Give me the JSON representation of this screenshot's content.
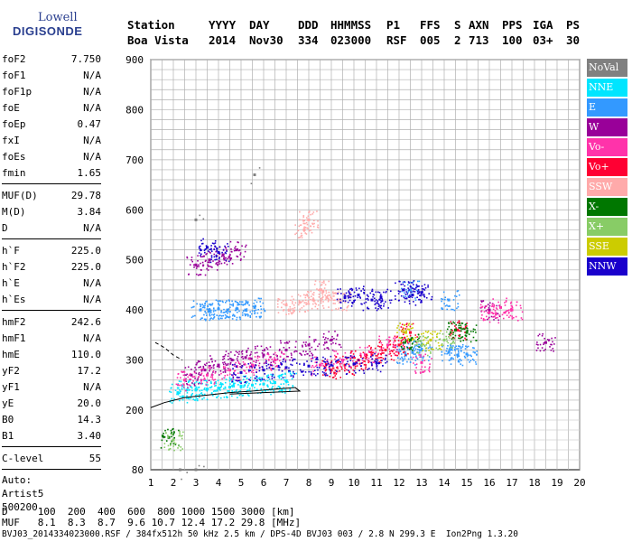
{
  "logo": {
    "line1": "Lowell",
    "line2": "DIGISONDE"
  },
  "header": {
    "labels": [
      "Station",
      "YYYY",
      "DAY",
      "DDD",
      "HHMMSS",
      "P1",
      "FFS",
      "S",
      "AXN",
      "PPS",
      "IGA",
      "PS"
    ],
    "values": [
      "Boa Vista",
      "2014",
      "Nov30",
      "334",
      "023000",
      "RSF",
      "005",
      "2",
      "713",
      "100",
      "03+",
      "30"
    ]
  },
  "params": {
    "group1": [
      {
        "k": "foF2",
        "v": "7.750"
      },
      {
        "k": "foF1",
        "v": "N/A"
      },
      {
        "k": "foF1p",
        "v": "N/A"
      },
      {
        "k": "foE",
        "v": "N/A"
      },
      {
        "k": "foEp",
        "v": "0.47"
      },
      {
        "k": "fxI",
        "v": "N/A"
      },
      {
        "k": "foEs",
        "v": "N/A"
      },
      {
        "k": "fmin",
        "v": "1.65"
      }
    ],
    "group2": [
      {
        "k": "MUF(D)",
        "v": "29.78"
      },
      {
        "k": "M(D)",
        "v": "3.84"
      },
      {
        "k": "D",
        "v": "N/A"
      }
    ],
    "group3": [
      {
        "k": "h`F",
        "v": "225.0"
      },
      {
        "k": "h`F2",
        "v": "225.0"
      },
      {
        "k": "h`E",
        "v": "N/A"
      },
      {
        "k": "h`Es",
        "v": "N/A"
      }
    ],
    "group4": [
      {
        "k": "hmF2",
        "v": "242.6"
      },
      {
        "k": "hmF1",
        "v": "N/A"
      },
      {
        "k": "hmE",
        "v": "110.0"
      },
      {
        "k": "yF2",
        "v": "17.2"
      },
      {
        "k": "yF1",
        "v": "N/A"
      },
      {
        "k": "yE",
        "v": "20.0"
      },
      {
        "k": "B0",
        "v": "14.3"
      },
      {
        "k": "B1",
        "v": "3.40"
      }
    ],
    "group5": [
      {
        "k": "C-level",
        "v": "55"
      }
    ],
    "auto": [
      "Auto:",
      "Artist5",
      "500200"
    ]
  },
  "legend": [
    {
      "label": "NoVal",
      "color": "#808080"
    },
    {
      "label": "NNE",
      "color": "#00e5ff"
    },
    {
      "label": "E",
      "color": "#3399ff"
    },
    {
      "label": "W",
      "color": "#990099"
    },
    {
      "label": "Vo-",
      "color": "#ff33aa"
    },
    {
      "label": "Vo+",
      "color": "#ff0033"
    },
    {
      "label": "SSW",
      "color": "#ffaaaa"
    },
    {
      "label": "X-",
      "color": "#007700"
    },
    {
      "label": "X+",
      "color": "#88cc66"
    },
    {
      "label": "SSE",
      "color": "#cccc00"
    },
    {
      "label": "NNW",
      "color": "#1a00cc"
    }
  ],
  "footer": {
    "line1": "D     100  200  400  600  800 1000 1500 3000 [km]",
    "line2": "MUF   8.1  8.3  8.7  9.6 10.7 12.4 17.2 29.8 [MHz]",
    "line3": "BVJ03_2014334023000.RSF / 384fx512h 50 kHz 2.5 km / DPS-4D BVJ03 003 / 2.8 N 299.3 E  Ion2Png 1.3.20"
  },
  "chart_data": {
    "type": "scatter",
    "title": "",
    "xlabel": "",
    "ylabel": "",
    "xlim": [
      1,
      20
    ],
    "ylim": [
      80,
      900
    ],
    "x_ticks": [
      1,
      2,
      3,
      4,
      5,
      6,
      7,
      8,
      9,
      10,
      11,
      12,
      13,
      14,
      15,
      16,
      17,
      18,
      19,
      20
    ],
    "y_ticks": [
      80,
      200,
      300,
      400,
      500,
      600,
      700,
      800,
      900
    ],
    "grid": true,
    "series": [
      {
        "name": "NNE",
        "color": "#00e5ff",
        "points": [
          [
            2.2,
            235
          ],
          [
            2.6,
            240
          ],
          [
            3.0,
            240
          ],
          [
            3.5,
            242
          ],
          [
            4.0,
            244
          ],
          [
            4.5,
            246
          ],
          [
            5.0,
            248
          ],
          [
            5.5,
            250
          ],
          [
            6.0,
            252
          ],
          [
            6.5,
            255
          ],
          [
            7.0,
            258
          ]
        ]
      },
      {
        "name": "E",
        "color": "#3399ff",
        "points": [
          [
            3.2,
            400
          ],
          [
            3.6,
            400
          ],
          [
            4.0,
            402
          ],
          [
            4.4,
            400
          ],
          [
            4.8,
            402
          ],
          [
            5.2,
            400
          ],
          [
            5.6,
            405
          ],
          [
            12.3,
            310
          ],
          [
            12.6,
            315
          ],
          [
            13.0,
            320
          ],
          [
            14.2,
            315
          ],
          [
            14.6,
            310
          ],
          [
            15.0,
            312
          ],
          [
            12.5,
            440
          ],
          [
            14.2,
            420
          ]
        ]
      },
      {
        "name": "W",
        "color": "#990099",
        "points": [
          [
            2.8,
            270
          ],
          [
            3.4,
            280
          ],
          [
            4.0,
            290
          ],
          [
            4.6,
            300
          ],
          [
            5.2,
            305
          ],
          [
            6.0,
            310
          ],
          [
            7.0,
            320
          ],
          [
            8.0,
            330
          ],
          [
            9.0,
            340
          ],
          [
            3.0,
            490
          ],
          [
            3.6,
            500
          ],
          [
            4.2,
            510
          ],
          [
            4.8,
            520
          ],
          [
            16.0,
            400
          ],
          [
            18.5,
            335
          ]
        ]
      },
      {
        "name": "Vo-",
        "color": "#ff33aa",
        "points": [
          [
            2.5,
            260
          ],
          [
            3.5,
            270
          ],
          [
            4.5,
            280
          ],
          [
            5.5,
            290
          ],
          [
            6.5,
            300
          ],
          [
            8.5,
            290
          ],
          [
            9.5,
            300
          ],
          [
            10.5,
            310
          ],
          [
            11.5,
            330
          ],
          [
            16.0,
            395
          ],
          [
            16.5,
            405
          ],
          [
            17.0,
            400
          ],
          [
            13.0,
            295
          ]
        ]
      },
      {
        "name": "Vo+",
        "color": "#ff0033",
        "points": [
          [
            9.0,
            280
          ],
          [
            9.6,
            290
          ],
          [
            10.2,
            300
          ],
          [
            10.8,
            310
          ],
          [
            11.4,
            320
          ],
          [
            12.0,
            330
          ],
          [
            14.6,
            360
          ],
          [
            12.5,
            355
          ]
        ]
      },
      {
        "name": "SSW",
        "color": "#ffaaaa",
        "points": [
          [
            7.0,
            410
          ],
          [
            7.6,
            415
          ],
          [
            8.2,
            420
          ],
          [
            8.8,
            425
          ],
          [
            9.4,
            420
          ],
          [
            8.5,
            440
          ],
          [
            7.8,
            560
          ],
          [
            8.0,
            580
          ]
        ]
      },
      {
        "name": "X-",
        "color": "#007700",
        "points": [
          [
            1.8,
            145
          ],
          [
            12.5,
            340
          ],
          [
            14.5,
            360
          ],
          [
            15.0,
            355
          ]
        ]
      },
      {
        "name": "X+",
        "color": "#88cc66",
        "points": [
          [
            2.0,
            140
          ],
          [
            13.0,
            330
          ],
          [
            14.0,
            340
          ]
        ]
      },
      {
        "name": "SSE",
        "color": "#cccc00",
        "points": [
          [
            12.3,
            355
          ],
          [
            13.4,
            340
          ]
        ]
      },
      {
        "name": "NNW",
        "color": "#1a00cc",
        "points": [
          [
            5.0,
            275
          ],
          [
            6.0,
            280
          ],
          [
            7.0,
            285
          ],
          [
            8.0,
            288
          ],
          [
            9.0,
            290
          ],
          [
            10.0,
            292
          ],
          [
            11.0,
            295
          ],
          [
            9.6,
            425
          ],
          [
            10.2,
            430
          ],
          [
            10.8,
            420
          ],
          [
            11.2,
            425
          ],
          [
            12.2,
            440
          ],
          [
            12.6,
            430
          ],
          [
            13.0,
            435
          ],
          [
            3.5,
            525
          ],
          [
            4.0,
            515
          ]
        ]
      },
      {
        "name": "NoVal",
        "color": "#808080",
        "points": [
          [
            5.6,
            670
          ],
          [
            3.0,
            580
          ],
          [
            2.3,
            80
          ],
          [
            3.0,
            80
          ]
        ]
      }
    ]
  }
}
